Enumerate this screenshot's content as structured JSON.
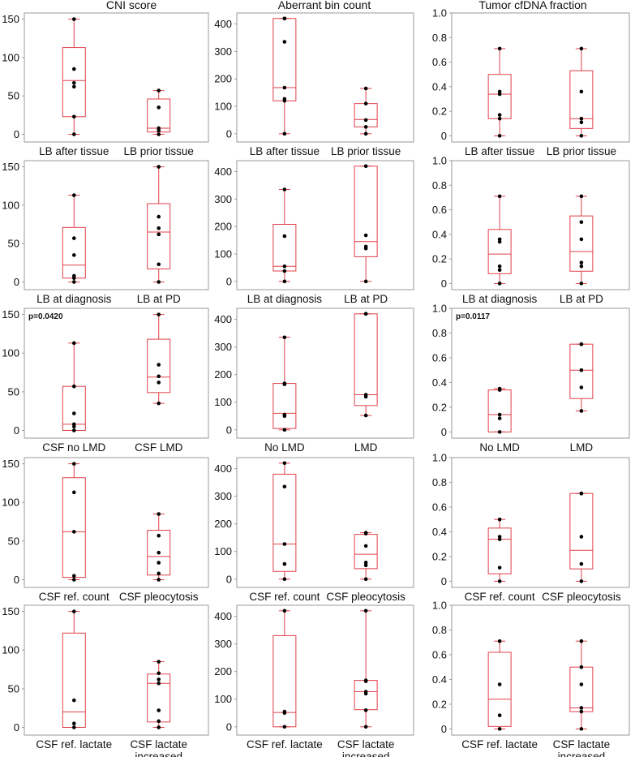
{
  "colors": {
    "box_stroke": "#e0404a",
    "frame": "#9a9a9a",
    "point": "#000000"
  },
  "column_titles": [
    "CNI score",
    "Aberrant bin count",
    "Tumor cfDNA fraction"
  ],
  "chart_data": [
    {
      "type": "box",
      "title": "CNI score",
      "categories": [
        "LB after tissue",
        "LB prior tissue"
      ],
      "ylim": [
        -10,
        158
      ],
      "yticks": [
        0,
        50,
        100,
        150
      ],
      "boxes": [
        {
          "min": 0,
          "q1": 23,
          "median": 70,
          "q3": 113,
          "max": 150,
          "points": [
            0,
            23,
            62,
            67,
            85,
            150
          ]
        },
        {
          "min": 0,
          "q1": 3,
          "median": 8,
          "q3": 46,
          "max": 57,
          "points": [
            0,
            5,
            8,
            35,
            57
          ]
        }
      ]
    },
    {
      "type": "box",
      "title": "Aberrant bin count",
      "categories": [
        "LB after tissue",
        "LB prior tissue"
      ],
      "ylim": [
        -30,
        440
      ],
      "yticks": [
        0,
        100,
        200,
        300,
        400
      ],
      "boxes": [
        {
          "min": 0,
          "q1": 120,
          "median": 168,
          "q3": 420,
          "max": 420,
          "points": [
            0,
            120,
            127,
            168,
            335,
            420,
            420
          ]
        },
        {
          "min": 0,
          "q1": 25,
          "median": 52,
          "q3": 110,
          "max": 165,
          "points": [
            0,
            25,
            50,
            110,
            165
          ]
        }
      ]
    },
    {
      "type": "box",
      "title": "Tumor cfDNA fraction",
      "categories": [
        "LB after tissue",
        "LB prior tissue"
      ],
      "ylim": [
        -0.05,
        1.0
      ],
      "yticks": [
        0,
        0.2,
        0.4,
        0.6,
        0.8,
        1.0
      ],
      "boxes": [
        {
          "min": 0,
          "q1": 0.14,
          "median": 0.34,
          "q3": 0.5,
          "max": 0.71,
          "points": [
            0,
            0.14,
            0.17,
            0.34,
            0.36,
            0.71
          ]
        },
        {
          "min": 0,
          "q1": 0.06,
          "median": 0.14,
          "q3": 0.53,
          "max": 0.71,
          "points": [
            0,
            0.11,
            0.14,
            0.36,
            0.71
          ]
        }
      ]
    },
    {
      "type": "box",
      "categories": [
        "LB at diagnosis",
        "LB at PD"
      ],
      "ylim": [
        -10,
        158
      ],
      "yticks": [
        0,
        50,
        100,
        150
      ],
      "boxes": [
        {
          "min": 0,
          "q1": 5,
          "median": 22,
          "q3": 71,
          "max": 113,
          "points": [
            0,
            5,
            8,
            35,
            57,
            113
          ]
        },
        {
          "min": 0,
          "q1": 17,
          "median": 65,
          "q3": 102,
          "max": 150,
          "points": [
            0,
            23,
            62,
            70,
            85,
            150
          ]
        }
      ]
    },
    {
      "type": "box",
      "categories": [
        "LB at diagnosis",
        "LB at PD"
      ],
      "ylim": [
        -30,
        440
      ],
      "yticks": [
        0,
        100,
        200,
        300,
        400
      ],
      "boxes": [
        {
          "min": 0,
          "q1": 38,
          "median": 55,
          "q3": 208,
          "max": 335,
          "points": [
            0,
            38,
            55,
            165,
            335
          ]
        },
        {
          "min": 0,
          "q1": 90,
          "median": 145,
          "q3": 420,
          "max": 420,
          "points": [
            0,
            120,
            127,
            168,
            420
          ]
        }
      ]
    },
    {
      "type": "box",
      "categories": [
        "LB at diagnosis",
        "LB at PD"
      ],
      "ylim": [
        -0.05,
        1.0
      ],
      "yticks": [
        0,
        0.2,
        0.4,
        0.6,
        0.8,
        1.0
      ],
      "boxes": [
        {
          "min": 0,
          "q1": 0.08,
          "median": 0.24,
          "q3": 0.44,
          "max": 0.71,
          "points": [
            0,
            0.11,
            0.14,
            0.34,
            0.36,
            0.71
          ]
        },
        {
          "min": 0,
          "q1": 0.1,
          "median": 0.26,
          "q3": 0.55,
          "max": 0.71,
          "points": [
            0,
            0.14,
            0.17,
            0.36,
            0.5,
            0.71
          ]
        }
      ]
    },
    {
      "type": "box",
      "pvalue": "p=0.0420",
      "categories": [
        "CSF no LMD",
        "CSF LMD"
      ],
      "ylim": [
        -10,
        158
      ],
      "yticks": [
        0,
        50,
        100,
        150
      ],
      "boxes": [
        {
          "min": 0,
          "q1": 0,
          "median": 8,
          "q3": 57,
          "max": 113,
          "points": [
            0,
            5,
            8,
            22,
            57,
            113
          ]
        },
        {
          "min": 35,
          "q1": 49,
          "median": 69,
          "q3": 118,
          "max": 150,
          "points": [
            35,
            62,
            70,
            85,
            150
          ]
        }
      ]
    },
    {
      "type": "box",
      "categories": [
        "No LMD",
        "LMD"
      ],
      "ylim": [
        -30,
        440
      ],
      "yticks": [
        0,
        100,
        200,
        300,
        400
      ],
      "boxes": [
        {
          "min": 0,
          "q1": 5,
          "median": 60,
          "q3": 168,
          "max": 335,
          "points": [
            0,
            50,
            55,
            165,
            168,
            335
          ]
        },
        {
          "min": 52,
          "q1": 88,
          "median": 127,
          "q3": 420,
          "max": 420,
          "points": [
            52,
            120,
            127,
            420,
            420
          ]
        }
      ]
    },
    {
      "type": "box",
      "pvalue": "p=0.0117",
      "categories": [
        "No LMD",
        "LMD"
      ],
      "ylim": [
        -0.05,
        1.0
      ],
      "yticks": [
        0,
        0.2,
        0.4,
        0.6,
        0.8,
        1.0
      ],
      "boxes": [
        {
          "min": 0,
          "q1": 0,
          "median": 0.14,
          "q3": 0.34,
          "max": 0.35,
          "points": [
            0,
            0.11,
            0.14,
            0.34,
            0.35
          ]
        },
        {
          "min": 0.17,
          "q1": 0.27,
          "median": 0.5,
          "q3": 0.71,
          "max": 0.71,
          "points": [
            0.17,
            0.36,
            0.5,
            0.71,
            0.71
          ]
        }
      ]
    },
    {
      "type": "box",
      "categories": [
        "CSF ref. count",
        "CSF pleocytosis"
      ],
      "ylim": [
        -10,
        158
      ],
      "yticks": [
        0,
        50,
        100,
        150
      ],
      "boxes": [
        {
          "min": 0,
          "q1": 3,
          "median": 62,
          "q3": 132,
          "max": 150,
          "points": [
            0,
            5,
            62,
            113,
            150
          ]
        },
        {
          "min": 0,
          "q1": 6,
          "median": 30,
          "q3": 64,
          "max": 85,
          "points": [
            0,
            8,
            22,
            35,
            57,
            85
          ]
        }
      ]
    },
    {
      "type": "box",
      "categories": [
        "CSF ref. count",
        "CSF pleocytosis"
      ],
      "ylim": [
        -30,
        440
      ],
      "yticks": [
        0,
        100,
        200,
        300,
        400
      ],
      "boxes": [
        {
          "min": 0,
          "q1": 28,
          "median": 127,
          "q3": 380,
          "max": 420,
          "points": [
            0,
            55,
            127,
            335,
            420
          ]
        },
        {
          "min": 0,
          "q1": 38,
          "median": 90,
          "q3": 162,
          "max": 168,
          "points": [
            0,
            50,
            60,
            120,
            165,
            168
          ]
        }
      ]
    },
    {
      "type": "box",
      "categories": [
        "CSF ref. count",
        "CSF pleocytosis"
      ],
      "ylim": [
        -0.05,
        1.0
      ],
      "yticks": [
        0,
        0.2,
        0.4,
        0.6,
        0.8,
        1.0
      ],
      "boxes": [
        {
          "min": 0,
          "q1": 0.06,
          "median": 0.34,
          "q3": 0.43,
          "max": 0.5,
          "points": [
            0,
            0.11,
            0.34,
            0.36,
            0.5
          ]
        },
        {
          "min": 0,
          "q1": 0.1,
          "median": 0.25,
          "q3": 0.71,
          "max": 0.71,
          "points": [
            0,
            0.14,
            0.36,
            0.71,
            0.71
          ]
        }
      ]
    },
    {
      "type": "box",
      "categories": [
        "CSF ref. lactate",
        "CSF lactate increased"
      ],
      "ylim": [
        -10,
        158
      ],
      "yticks": [
        0,
        50,
        100,
        150
      ],
      "boxes": [
        {
          "min": 0,
          "q1": 0,
          "median": 20,
          "q3": 122,
          "max": 150,
          "points": [
            0,
            5,
            35,
            150
          ]
        },
        {
          "min": 0,
          "q1": 7,
          "median": 57,
          "q3": 69,
          "max": 85,
          "points": [
            0,
            8,
            22,
            57,
            62,
            70,
            85
          ]
        }
      ]
    },
    {
      "type": "box",
      "categories": [
        "CSF ref. lactate",
        "CSF lactate increased"
      ],
      "ylim": [
        -30,
        440
      ],
      "yticks": [
        0,
        100,
        200,
        300,
        400
      ],
      "boxes": [
        {
          "min": 0,
          "q1": 0,
          "median": 52,
          "q3": 330,
          "max": 420,
          "points": [
            0,
            50,
            55,
            420
          ]
        },
        {
          "min": 0,
          "q1": 62,
          "median": 127,
          "q3": 168,
          "max": 420,
          "points": [
            0,
            60,
            120,
            127,
            165,
            168,
            420
          ]
        }
      ]
    },
    {
      "type": "box",
      "categories": [
        "CSF ref. lactate",
        "CSF lactate increased"
      ],
      "ylim": [
        -0.05,
        1.0
      ],
      "yticks": [
        0,
        0.2,
        0.4,
        0.6,
        0.8,
        1.0
      ],
      "boxes": [
        {
          "min": 0,
          "q1": 0.02,
          "median": 0.24,
          "q3": 0.62,
          "max": 0.71,
          "points": [
            0,
            0.11,
            0.36,
            0.71
          ]
        },
        {
          "min": 0,
          "q1": 0.14,
          "median": 0.17,
          "q3": 0.5,
          "max": 0.71,
          "points": [
            0,
            0.14,
            0.17,
            0.36,
            0.5,
            0.71
          ]
        }
      ]
    }
  ]
}
